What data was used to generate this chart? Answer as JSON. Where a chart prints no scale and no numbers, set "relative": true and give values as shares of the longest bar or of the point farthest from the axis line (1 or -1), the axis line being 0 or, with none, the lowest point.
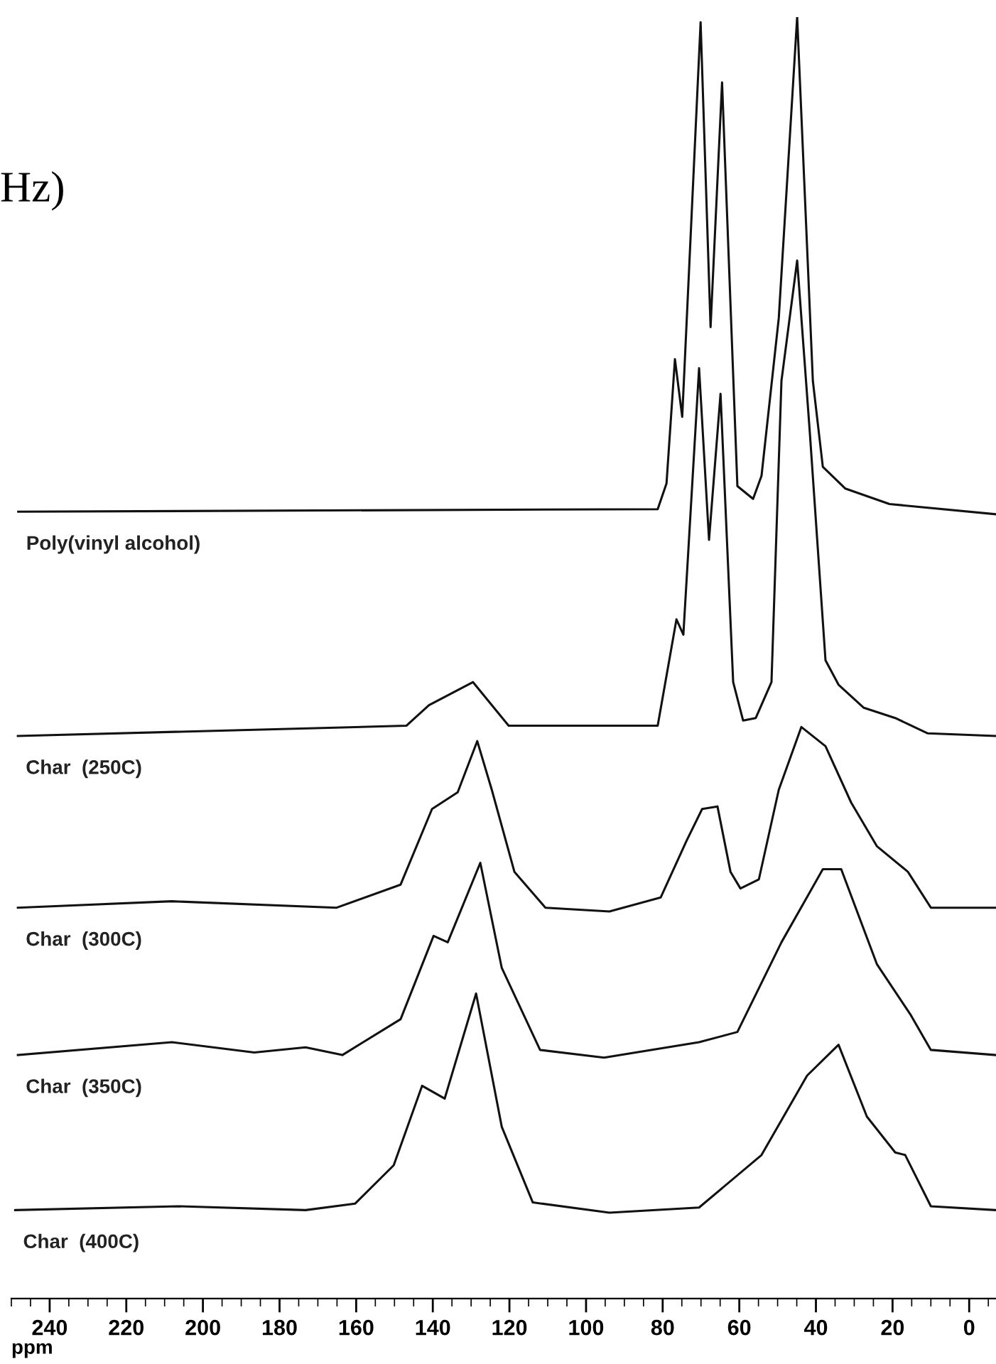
{
  "chart_data": {
    "type": "line",
    "relative": true,
    "xlabel": "ppm",
    "annotations": [
      "Hz)"
    ],
    "xlim": [
      250,
      -7
    ],
    "xticks": [
      240,
      220,
      200,
      180,
      160,
      140,
      120,
      100,
      80,
      60,
      40,
      20,
      0
    ],
    "grid": false,
    "legend": false,
    "marker": "none",
    "line_style": "solid",
    "series": [
      {
        "name": "Poly(vinyl alcohol)",
        "color": "#111111",
        "x": [
          248.2,
          81.3,
          79,
          76.8,
          74.9,
          70.1,
          67.5,
          64.5,
          60.5,
          56.4,
          54.2,
          49.7,
          44.9,
          40.8,
          38.2,
          32.3,
          20.8,
          -7
        ],
        "values": [
          0.614,
          0.616,
          0.636,
          0.733,
          0.688,
          0.996,
          0.758,
          0.949,
          0.634,
          0.624,
          0.642,
          0.765,
          1.0,
          0.716,
          0.649,
          0.632,
          0.62,
          0.612
        ]
      },
      {
        "name": "Char  (250C)",
        "color": "#111111",
        "x": [
          248.3,
          146.9,
          141,
          129.5,
          120.2,
          81.3,
          76.4,
          74.6,
          70.5,
          67.9,
          64.9,
          61.6,
          59,
          55.7,
          51.6,
          49,
          44.9,
          41.6,
          37.5,
          34.1,
          27.5,
          19.3,
          10.8,
          -7
        ],
        "values": [
          0.439,
          0.447,
          0.463,
          0.481,
          0.447,
          0.447,
          0.53,
          0.518,
          0.726,
          0.592,
          0.706,
          0.481,
          0.451,
          0.453,
          0.481,
          0.716,
          0.81,
          0.676,
          0.498,
          0.479,
          0.461,
          0.453,
          0.441,
          0.439
        ]
      },
      {
        "name": "Char  (300C)",
        "color": "#111111",
        "x": [
          248.3,
          208.1,
          165.1,
          148.4,
          140.2,
          133.5,
          128.4,
          124.6,
          118.7,
          110.6,
          93.9,
          80.5,
          73.8,
          69.7,
          65.7,
          62.3,
          59.7,
          54.9,
          49.7,
          43.8,
          37.5,
          30.8,
          24.1,
          16,
          10,
          -7
        ],
        "values": [
          0.305,
          0.31,
          0.305,
          0.323,
          0.382,
          0.395,
          0.435,
          0.397,
          0.333,
          0.305,
          0.302,
          0.313,
          0.357,
          0.382,
          0.384,
          0.333,
          0.32,
          0.327,
          0.397,
          0.446,
          0.431,
          0.387,
          0.353,
          0.333,
          0.305,
          0.305
        ]
      },
      {
        "name": "Char  (350C)",
        "color": "#111111",
        "x": [
          248.3,
          208.1,
          186.6,
          173.2,
          163.6,
          148.4,
          139.8,
          136.1,
          127.6,
          122,
          112,
          95.3,
          70.5,
          60.5,
          49,
          38.2,
          33.4,
          24.1,
          15.2,
          10,
          -7
        ],
        "values": [
          0.19,
          0.2,
          0.192,
          0.196,
          0.19,
          0.218,
          0.283,
          0.278,
          0.34,
          0.258,
          0.194,
          0.188,
          0.2,
          0.208,
          0.278,
          0.335,
          0.335,
          0.261,
          0.221,
          0.194,
          0.19
        ]
      },
      {
        "name": "Char  (400C)",
        "color": "#111111",
        "x": [
          249,
          206.6,
          173.2,
          160.3,
          150.2,
          142.8,
          136.9,
          128.7,
          122,
          113.9,
          93.9,
          70.5,
          54.2,
          42.3,
          34.1,
          26.7,
          19.3,
          16.7,
          10,
          -7
        ],
        "values": [
          0.069,
          0.072,
          0.069,
          0.074,
          0.104,
          0.166,
          0.156,
          0.238,
          0.134,
          0.075,
          0.067,
          0.071,
          0.112,
          0.174,
          0.198,
          0.142,
          0.114,
          0.112,
          0.072,
          0.069
        ]
      }
    ]
  }
}
